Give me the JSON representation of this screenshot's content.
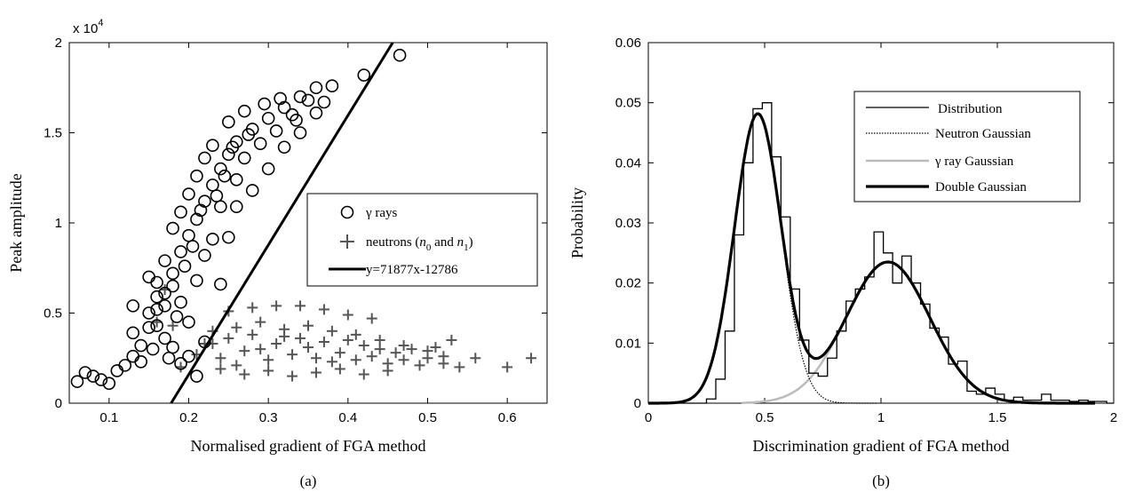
{
  "chart_data": [
    {
      "type": "scatter",
      "panel_label": "(a)",
      "xlabel": "Normalised gradient of FGA method",
      "ylabel": "Peak amplitude",
      "multiplier": "x 10",
      "multiplier_exp": "4",
      "xlim": [
        0.05,
        0.65
      ],
      "ylim": [
        0,
        20000
      ],
      "xticks": [
        "0.1",
        "0.2",
        "0.3",
        "0.4",
        "0.5",
        "0.6"
      ],
      "xtick_values": [
        0.1,
        0.2,
        0.3,
        0.4,
        0.5,
        0.6
      ],
      "yticks": [
        "0",
        "0.5",
        "1",
        "1.5",
        "2"
      ],
      "ytick_values": [
        0,
        5000,
        10000,
        15000,
        20000
      ],
      "legend_position": "right-center",
      "grid": false,
      "series": [
        {
          "name": "γ rays",
          "marker": "circle",
          "color": "#000000",
          "points": [
            [
              0.06,
              1200
            ],
            [
              0.07,
              1700
            ],
            [
              0.08,
              1500
            ],
            [
              0.09,
              1300
            ],
            [
              0.1,
              1100
            ],
            [
              0.11,
              1800
            ],
            [
              0.12,
              2100
            ],
            [
              0.13,
              2600
            ],
            [
              0.14,
              3200
            ],
            [
              0.15,
              4200
            ],
            [
              0.16,
              5200
            ],
            [
              0.17,
              6100
            ],
            [
              0.18,
              7200
            ],
            [
              0.19,
              8400
            ],
            [
              0.2,
              9300
            ],
            [
              0.21,
              10200
            ],
            [
              0.22,
              11200
            ],
            [
              0.23,
              12100
            ],
            [
              0.24,
              13000
            ],
            [
              0.25,
              13800
            ],
            [
              0.26,
              14500
            ],
            [
              0.28,
              15200
            ],
            [
              0.3,
              15800
            ],
            [
              0.32,
              16400
            ],
            [
              0.34,
              17000
            ],
            [
              0.36,
              17500
            ],
            [
              0.38,
              17600
            ],
            [
              0.42,
              18200
            ],
            [
              0.465,
              19300
            ],
            [
              0.15,
              5000
            ],
            [
              0.16,
              4300
            ],
            [
              0.17,
              3600
            ],
            [
              0.18,
              6500
            ],
            [
              0.19,
              5600
            ],
            [
              0.2,
              4500
            ],
            [
              0.21,
              6800
            ],
            [
              0.22,
              8200
            ],
            [
              0.23,
              9100
            ],
            [
              0.24,
              10900
            ],
            [
              0.26,
              12400
            ],
            [
              0.27,
              13600
            ],
            [
              0.29,
              14400
            ],
            [
              0.31,
              15100
            ],
            [
              0.33,
              16000
            ],
            [
              0.35,
              16800
            ],
            [
              0.14,
              2300
            ],
            [
              0.13,
              3900
            ],
            [
              0.16,
              6700
            ],
            [
              0.17,
              7900
            ],
            [
              0.18,
              9700
            ],
            [
              0.19,
              10600
            ],
            [
              0.2,
              11600
            ],
            [
              0.21,
              12600
            ],
            [
              0.22,
              13600
            ],
            [
              0.23,
              14300
            ],
            [
              0.25,
              15600
            ],
            [
              0.27,
              16200
            ],
            [
              0.15,
              7000
            ],
            [
              0.2,
              2600
            ],
            [
              0.22,
              3400
            ],
            [
              0.24,
              6600
            ],
            [
              0.25,
              9200
            ],
            [
              0.26,
              10900
            ],
            [
              0.28,
              11800
            ],
            [
              0.3,
              13000
            ],
            [
              0.32,
              14200
            ],
            [
              0.34,
              15000
            ],
            [
              0.36,
              16100
            ],
            [
              0.37,
              16700
            ],
            [
              0.155,
              3000
            ],
            [
              0.175,
              2500
            ],
            [
              0.185,
              4800
            ],
            [
              0.195,
              7600
            ],
            [
              0.205,
              8700
            ],
            [
              0.215,
              10700
            ],
            [
              0.235,
              11500
            ],
            [
              0.245,
              12600
            ],
            [
              0.255,
              14200
            ],
            [
              0.275,
              14900
            ],
            [
              0.295,
              16600
            ],
            [
              0.315,
              16900
            ],
            [
              0.335,
              15700
            ],
            [
              0.17,
              5400
            ],
            [
              0.18,
              3100
            ],
            [
              0.16,
              5900
            ],
            [
              0.19,
              2200
            ],
            [
              0.21,
              1500
            ],
            [
              0.13,
              5400
            ]
          ]
        },
        {
          "name": "neutrons (n0 and n1)",
          "marker": "plus",
          "color": "#555555",
          "points": [
            [
              0.19,
              2000
            ],
            [
              0.21,
              2700
            ],
            [
              0.22,
              3300
            ],
            [
              0.23,
              4000
            ],
            [
              0.24,
              2500
            ],
            [
              0.25,
              3600
            ],
            [
              0.26,
              4200
            ],
            [
              0.27,
              2900
            ],
            [
              0.28,
              3800
            ],
            [
              0.29,
              4500
            ],
            [
              0.3,
              2400
            ],
            [
              0.31,
              3300
            ],
            [
              0.32,
              4100
            ],
            [
              0.33,
              2700
            ],
            [
              0.34,
              3600
            ],
            [
              0.35,
              4300
            ],
            [
              0.36,
              2500
            ],
            [
              0.37,
              3400
            ],
            [
              0.38,
              4000
            ],
            [
              0.39,
              2800
            ],
            [
              0.4,
              3500
            ],
            [
              0.41,
              2400
            ],
            [
              0.42,
              3200
            ],
            [
              0.43,
              2600
            ],
            [
              0.44,
              3000
            ],
            [
              0.45,
              2200
            ],
            [
              0.46,
              2800
            ],
            [
              0.47,
              2400
            ],
            [
              0.48,
              3000
            ],
            [
              0.49,
              2100
            ],
            [
              0.5,
              2500
            ],
            [
              0.51,
              3100
            ],
            [
              0.52,
              2200
            ],
            [
              0.53,
              3500
            ],
            [
              0.54,
              2000
            ],
            [
              0.56,
              2500
            ],
            [
              0.6,
              2000
            ],
            [
              0.63,
              2500
            ],
            [
              0.25,
              5100
            ],
            [
              0.28,
              5300
            ],
            [
              0.31,
              5400
            ],
            [
              0.34,
              5400
            ],
            [
              0.37,
              5200
            ],
            [
              0.4,
              4900
            ],
            [
              0.43,
              4700
            ],
            [
              0.24,
              1900
            ],
            [
              0.27,
              1600
            ],
            [
              0.3,
              1800
            ],
            [
              0.33,
              1500
            ],
            [
              0.36,
              1700
            ],
            [
              0.39,
              1900
            ],
            [
              0.42,
              1600
            ],
            [
              0.45,
              1800
            ],
            [
              0.23,
              3300
            ],
            [
              0.26,
              2100
            ],
            [
              0.29,
              3000
            ],
            [
              0.32,
              3700
            ],
            [
              0.35,
              3100
            ],
            [
              0.38,
              2300
            ],
            [
              0.41,
              3800
            ],
            [
              0.44,
              3500
            ],
            [
              0.47,
              3200
            ],
            [
              0.5,
              2900
            ],
            [
              0.52,
              2600
            ],
            [
              0.17,
              6300
            ],
            [
              0.18,
              4300
            ],
            [
              0.16,
              4500
            ]
          ]
        },
        {
          "name": "y=71877x-12786",
          "type": "line",
          "slope": 71877,
          "intercept": -12786,
          "color": "#000000"
        }
      ]
    },
    {
      "type": "line",
      "panel_label": "(b)",
      "xlabel": "Discrimination gradient of FGA method",
      "ylabel": "Probability",
      "xlim": [
        0,
        2
      ],
      "ylim": [
        0,
        0.06
      ],
      "xticks": [
        "0",
        "0.5",
        "1",
        "1.5",
        "2"
      ],
      "xtick_values": [
        0,
        0.5,
        1,
        1.5,
        2
      ],
      "yticks": [
        "0",
        "0.01",
        "0.02",
        "0.03",
        "0.04",
        "0.05",
        "0.06"
      ],
      "ytick_values": [
        0,
        0.01,
        0.02,
        0.03,
        0.04,
        0.05,
        0.06
      ],
      "legend_position": "top-right",
      "grid": false,
      "series": [
        {
          "name": "Distribution",
          "style": "step",
          "color": "#000000",
          "x": [
            0.25,
            0.29,
            0.33,
            0.37,
            0.41,
            0.45,
            0.49,
            0.53,
            0.57,
            0.61,
            0.65,
            0.69,
            0.73,
            0.77,
            0.81,
            0.85,
            0.89,
            0.93,
            0.97,
            1.01,
            1.05,
            1.09,
            1.13,
            1.17,
            1.21,
            1.25,
            1.29,
            1.33,
            1.37,
            1.41,
            1.45,
            1.49,
            1.53,
            1.57,
            1.61,
            1.65,
            1.69,
            1.73,
            1.77,
            1.81,
            1.85,
            1.89,
            1.93,
            1.97
          ],
          "values": [
            0.0007,
            0.004,
            0.012,
            0.028,
            0.04,
            0.049,
            0.05,
            0.041,
            0.031,
            0.019,
            0.0105,
            0.005,
            0.0045,
            0.0075,
            0.012,
            0.017,
            0.019,
            0.021,
            0.0285,
            0.025,
            0.02,
            0.0245,
            0.02,
            0.0165,
            0.0125,
            0.011,
            0.0065,
            0.007,
            0.002,
            0.0015,
            0.0025,
            0.0015,
            0.0005,
            0.001,
            0.0005,
            0.0005,
            0.0015,
            0.0005,
            0.0005,
            0.0003,
            0.0005,
            0.0003,
            0.0003,
            0
          ]
        },
        {
          "name": "Neutron Gaussian",
          "style": "dotted",
          "color": "#000000",
          "gaussian": {
            "amp": 0.048,
            "mu": 0.47,
            "sigma": 0.1
          }
        },
        {
          "name": "γ ray Gaussian",
          "style": "solid",
          "color": "#bbbbbb",
          "gaussian": {
            "amp": 0.0235,
            "mu": 1.03,
            "sigma": 0.18
          }
        },
        {
          "name": "Double Gaussian",
          "style": "thick",
          "color": "#000000"
        }
      ]
    }
  ]
}
